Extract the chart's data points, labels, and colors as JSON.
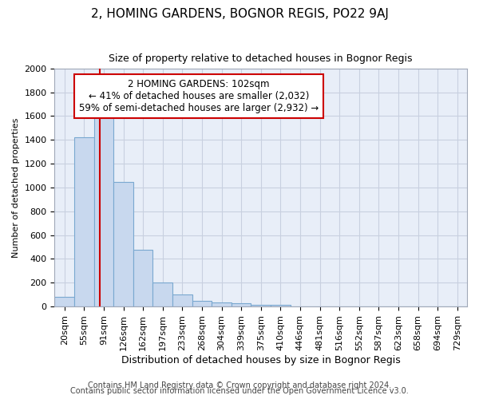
{
  "title1": "2, HOMING GARDENS, BOGNOR REGIS, PO22 9AJ",
  "title2": "Size of property relative to detached houses in Bognor Regis",
  "xlabel": "Distribution of detached houses by size in Bognor Regis",
  "ylabel": "Number of detached properties",
  "footer1": "Contains HM Land Registry data © Crown copyright and database right 2024.",
  "footer2": "Contains public sector information licensed under the Open Government Licence v3.0.",
  "bar_labels": [
    "20sqm",
    "55sqm",
    "91sqm",
    "126sqm",
    "162sqm",
    "197sqm",
    "233sqm",
    "268sqm",
    "304sqm",
    "339sqm",
    "375sqm",
    "410sqm",
    "446sqm",
    "481sqm",
    "516sqm",
    "552sqm",
    "587sqm",
    "623sqm",
    "658sqm",
    "694sqm",
    "729sqm"
  ],
  "bar_values": [
    80,
    1420,
    1620,
    1050,
    480,
    200,
    100,
    45,
    35,
    25,
    15,
    15,
    0,
    0,
    0,
    0,
    0,
    0,
    0,
    0,
    0
  ],
  "bar_color": "#c8d8ee",
  "bar_edge_color": "#7aa8d0",
  "background_color": "#ffffff",
  "plot_bg_color": "#e8eef8",
  "grid_color": "#c8d0e0",
  "annotation_text_line1": "2 HOMING GARDENS: 102sqm",
  "annotation_text_line2": "← 41% of detached houses are smaller (2,032)",
  "annotation_text_line3": "59% of semi-detached houses are larger (2,932) →",
  "annotation_box_color": "#ffffff",
  "annotation_box_edge": "#cc0000",
  "red_line_color": "#cc0000",
  "ylim": [
    0,
    2000
  ],
  "yticks": [
    0,
    200,
    400,
    600,
    800,
    1000,
    1200,
    1400,
    1600,
    1800,
    2000
  ],
  "title1_fontsize": 11,
  "title2_fontsize": 9,
  "xlabel_fontsize": 9,
  "ylabel_fontsize": 8,
  "tick_fontsize": 8,
  "footer_fontsize": 7
}
